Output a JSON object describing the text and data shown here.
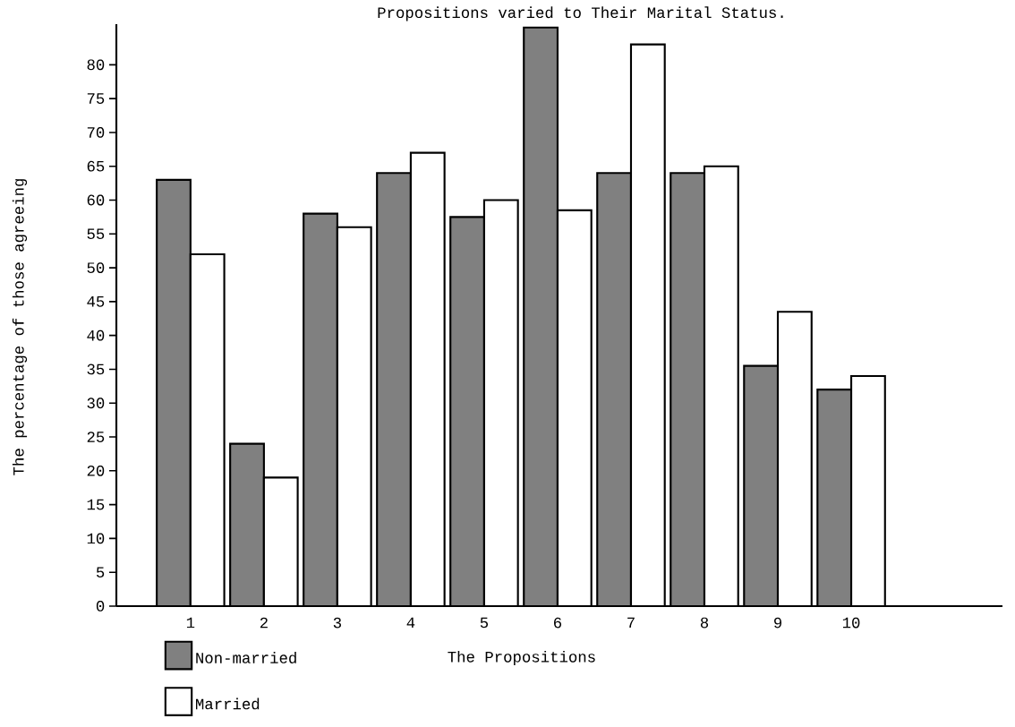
{
  "chart_data": {
    "type": "bar",
    "title": "Propositions varied to Their Marital Status.",
    "xlabel": "The Propositions",
    "ylabel": "The percentage of those agreeing",
    "categories": [
      "1",
      "2",
      "3",
      "4",
      "5",
      "6",
      "7",
      "8",
      "9",
      "10"
    ],
    "series": [
      {
        "name": "Non-married",
        "color": "#808080",
        "values": [
          63,
          24,
          58,
          64,
          57.5,
          85.5,
          64,
          64,
          35.5,
          32
        ]
      },
      {
        "name": "Married",
        "color": "#ffffff",
        "values": [
          52,
          19,
          56,
          67,
          60,
          58.5,
          83,
          65,
          43.5,
          34
        ]
      }
    ],
    "ylim": [
      0,
      86
    ],
    "yticks": [
      0,
      5,
      10,
      15,
      20,
      25,
      30,
      35,
      40,
      45,
      50,
      55,
      60,
      65,
      70,
      75,
      80
    ],
    "legend": "bottom left"
  }
}
